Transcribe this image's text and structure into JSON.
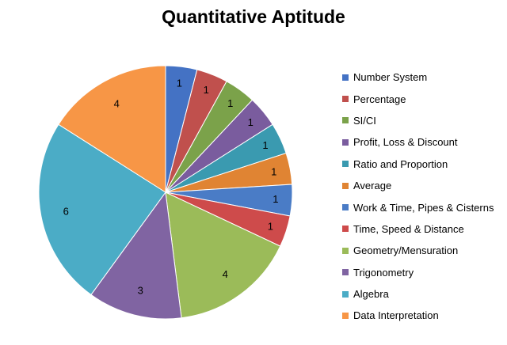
{
  "chart_data": {
    "type": "pie",
    "title": "Quantitative Aptitude",
    "categories": [
      "Number System",
      "Percentage",
      "SI/CI",
      "Profit, Loss & Discount",
      "Ratio and Proportion",
      "Average",
      "Work & Time, Pipes & Cisterns",
      "Time, Speed & Distance",
      "Geometry/Mensuration",
      "Trigonometry",
      "Algebra",
      "Data Interpretation"
    ],
    "values": [
      1,
      1,
      1,
      1,
      1,
      1,
      1,
      1,
      4,
      3,
      6,
      4
    ],
    "colors": [
      "#4472C4",
      "#C0504D",
      "#7BA24A",
      "#7A5C9E",
      "#3A9AB0",
      "#E08433",
      "#4A7CC6",
      "#CE4B4B",
      "#9BBB59",
      "#8064A2",
      "#4BACC6",
      "#F79646"
    ],
    "data_labels": true,
    "legend": "right"
  }
}
